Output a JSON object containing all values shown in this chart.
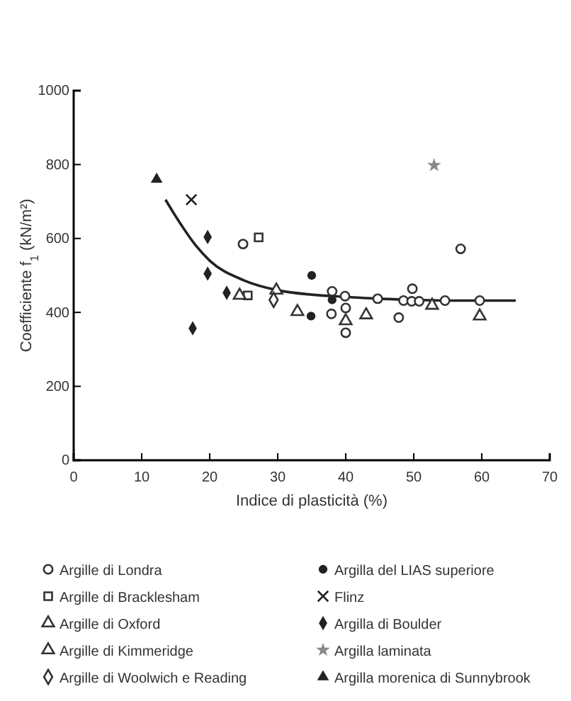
{
  "chart_data": {
    "type": "scatter",
    "xlabel": "Indice di plasticità (%)",
    "ylabel": "Coefficiente f$_{1}$ (kN/m²)",
    "xlim": [
      0,
      70
    ],
    "ylim": [
      0,
      1000
    ],
    "xticks": [
      0,
      10,
      20,
      30,
      40,
      50,
      60,
      70
    ],
    "yticks": [
      0,
      200,
      400,
      600,
      800,
      1000
    ],
    "grid": false,
    "legend": "bottom",
    "series": [
      {
        "name": "Argille di Londra",
        "color": "#333333",
        "marker": "circle",
        "x": [
          24.9,
          38,
          39.9,
          37.9,
          40,
          40,
          44.7,
          47.8,
          48.5,
          49.8,
          49.7,
          50.8,
          54.6,
          56.9,
          59.7
        ],
        "values": [
          585,
          457,
          444,
          396,
          412,
          345,
          437,
          386,
          432,
          464,
          430,
          430,
          432,
          572,
          432
        ]
      },
      {
        "name": "Argille di Bracklesham",
        "color": "#333333",
        "marker": "square",
        "x": [
          25.6,
          27.2
        ],
        "values": [
          446,
          603
        ]
      },
      {
        "name": "Argille di Oxford",
        "color": "#333333",
        "marker": "triangle",
        "x": [
          29.8,
          40,
          52.7,
          59.7
        ],
        "values": [
          460,
          377,
          419,
          390
        ]
      },
      {
        "name": "Argille di Kimmeridge",
        "color": "#333333",
        "marker": "triangle",
        "x": [
          24.4,
          32.9,
          43
        ],
        "values": [
          446,
          402,
          393
        ]
      },
      {
        "name": "Argille di Woolwich e Reading",
        "color": "#333333",
        "marker": "diamond",
        "x": [
          29.4
        ],
        "values": [
          434
        ]
      },
      {
        "name": "Argilla del LIAS superiore",
        "color": "#222222",
        "marker": "circle",
        "x": [
          35,
          34.9,
          38
        ],
        "values": [
          500,
          390,
          434
        ]
      },
      {
        "name": "Flinz",
        "color": "#222222",
        "marker": "cross",
        "x": [
          17.3
        ],
        "values": [
          705
        ]
      },
      {
        "name": "Argilla di Boulder",
        "color": "#222222",
        "marker": "diamond",
        "x": [
          19.7,
          19.7,
          22.5,
          17.5
        ],
        "values": [
          604,
          505,
          453,
          357
        ]
      },
      {
        "name": "Argilla laminata",
        "color": "#888888",
        "marker": "star",
        "x": [
          53
        ],
        "values": [
          798
        ]
      },
      {
        "name": "Argilla morenica di Sunnybrook",
        "color": "#222222",
        "marker": "triangle",
        "x": [
          12.2
        ],
        "values": [
          760
        ]
      },
      {
        "type": "line",
        "color": "#222222",
        "marker": "none",
        "x": [
          13.5,
          15,
          18,
          20,
          25,
          30,
          35,
          40,
          45,
          50,
          55,
          60,
          65
        ],
        "values": [
          705,
          660,
          580,
          540,
          487,
          460,
          448,
          442,
          437,
          434,
          432,
          432,
          432
        ]
      }
    ]
  }
}
